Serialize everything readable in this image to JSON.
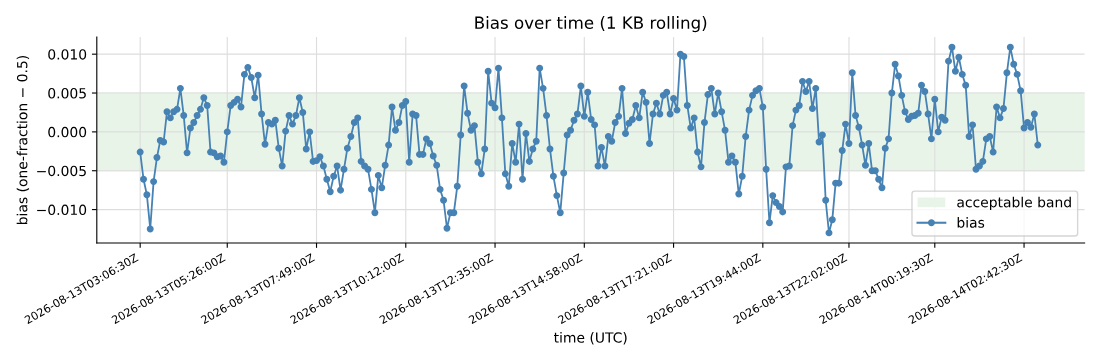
{
  "chart_data": {
    "type": "line",
    "title": "Bias over time (1 KB rolling)",
    "xlabel": "time (UTC)",
    "ylabel": "bias (one-fraction − 0.5)",
    "x": [
      "2026-08-13T03:06:30",
      "2026-08-13T03:11:52",
      "2026-08-13T03:17:14",
      "2026-08-13T03:22:36",
      "2026-08-13T03:27:58",
      "2026-08-13T03:33:20",
      "2026-08-13T03:38:42",
      "2026-08-13T03:44:04",
      "2026-08-13T03:49:26",
      "2026-08-13T03:54:48",
      "2026-08-13T04:00:10",
      "2026-08-13T04:05:32",
      "2026-08-13T04:10:54",
      "2026-08-13T04:16:16",
      "2026-08-13T04:21:38",
      "2026-08-13T04:27:00",
      "2026-08-13T04:32:22",
      "2026-08-13T04:37:44",
      "2026-08-13T04:43:06",
      "2026-08-13T04:48:28",
      "2026-08-13T04:53:50",
      "2026-08-13T04:59:12",
      "2026-08-13T05:04:34",
      "2026-08-13T05:09:56",
      "2026-08-13T05:15:18",
      "2026-08-13T05:20:40",
      "2026-08-13T05:26:00",
      "2026-08-13T05:31:30",
      "2026-08-13T05:37:00",
      "2026-08-13T05:42:30",
      "2026-08-13T05:48:00",
      "2026-08-13T05:53:30",
      "2026-08-13T05:59:00",
      "2026-08-13T06:04:30",
      "2026-08-13T06:10:00",
      "2026-08-13T06:15:30",
      "2026-08-13T06:21:00",
      "2026-08-13T06:26:30",
      "2026-08-13T06:32:00",
      "2026-08-13T06:37:30",
      "2026-08-13T06:43:00",
      "2026-08-13T06:48:30",
      "2026-08-13T06:54:00",
      "2026-08-13T06:59:30",
      "2026-08-13T07:05:00",
      "2026-08-13T07:10:30",
      "2026-08-13T07:16:00",
      "2026-08-13T07:21:30",
      "2026-08-13T07:27:00",
      "2026-08-13T07:32:30",
      "2026-08-13T07:38:00",
      "2026-08-13T07:43:30",
      "2026-08-13T07:49:00",
      "2026-08-13T07:54:30",
      "2026-08-13T08:00:00",
      "2026-08-13T08:05:30",
      "2026-08-13T08:11:00",
      "2026-08-13T08:16:30",
      "2026-08-13T08:22:00",
      "2026-08-13T08:27:30",
      "2026-08-13T08:33:00",
      "2026-08-13T08:38:30",
      "2026-08-13T08:44:00",
      "2026-08-13T08:49:30",
      "2026-08-13T08:55:00",
      "2026-08-13T09:00:30",
      "2026-08-13T09:06:00",
      "2026-08-13T09:11:30",
      "2026-08-13T09:17:00",
      "2026-08-13T09:22:30",
      "2026-08-13T09:28:00",
      "2026-08-13T09:33:30",
      "2026-08-13T09:39:00",
      "2026-08-13T09:44:30",
      "2026-08-13T09:50:00",
      "2026-08-13T09:55:30",
      "2026-08-13T10:01:00",
      "2026-08-13T10:06:30",
      "2026-08-13T10:12:00",
      "2026-08-13T10:17:30",
      "2026-08-13T10:23:00",
      "2026-08-13T10:28:30",
      "2026-08-13T10:34:00",
      "2026-08-13T10:39:30",
      "2026-08-13T10:45:00",
      "2026-08-13T10:50:30",
      "2026-08-13T10:56:00",
      "2026-08-13T11:01:30",
      "2026-08-13T11:07:00",
      "2026-08-13T11:12:30",
      "2026-08-13T11:18:00",
      "2026-08-13T11:23:30",
      "2026-08-13T11:29:00",
      "2026-08-13T11:34:30",
      "2026-08-13T11:40:00",
      "2026-08-13T11:45:30",
      "2026-08-13T11:51:00",
      "2026-08-13T11:56:30",
      "2026-08-13T12:02:00",
      "2026-08-13T12:07:30",
      "2026-08-13T12:13:00",
      "2026-08-13T12:18:30",
      "2026-08-13T12:24:00",
      "2026-08-13T12:29:30",
      "2026-08-13T12:35:00",
      "2026-08-13T12:40:30",
      "2026-08-13T12:46:00",
      "2026-08-13T12:51:30",
      "2026-08-13T12:57:00",
      "2026-08-13T13:02:30",
      "2026-08-13T13:08:00",
      "2026-08-13T13:13:30",
      "2026-08-13T13:19:00",
      "2026-08-13T13:24:30",
      "2026-08-13T13:30:00",
      "2026-08-13T13:35:30",
      "2026-08-13T13:41:00",
      "2026-08-13T13:46:30",
      "2026-08-13T13:52:00",
      "2026-08-13T13:57:30",
      "2026-08-13T14:03:00",
      "2026-08-13T14:08:30",
      "2026-08-13T14:14:00",
      "2026-08-13T14:19:30",
      "2026-08-13T14:25:00",
      "2026-08-13T14:30:30",
      "2026-08-13T14:36:00",
      "2026-08-13T14:41:30",
      "2026-08-13T14:47:00",
      "2026-08-13T14:52:30",
      "2026-08-13T14:58:00",
      "2026-08-13T15:03:30",
      "2026-08-13T15:09:00",
      "2026-08-13T15:14:30",
      "2026-08-13T15:20:00",
      "2026-08-13T15:25:30",
      "2026-08-13T15:31:00",
      "2026-08-13T15:36:30",
      "2026-08-13T15:42:00",
      "2026-08-13T15:47:30",
      "2026-08-13T15:53:00",
      "2026-08-13T15:58:30",
      "2026-08-13T16:04:00",
      "2026-08-13T16:09:30",
      "2026-08-13T16:15:00",
      "2026-08-13T16:20:30",
      "2026-08-13T16:26:00",
      "2026-08-13T16:31:30",
      "2026-08-13T16:37:00",
      "2026-08-13T16:42:30",
      "2026-08-13T16:48:00",
      "2026-08-13T16:53:30",
      "2026-08-13T16:59:00",
      "2026-08-13T17:04:30",
      "2026-08-13T17:10:00",
      "2026-08-13T17:15:30",
      "2026-08-13T17:21:00",
      "2026-08-13T17:26:30",
      "2026-08-13T17:32:00",
      "2026-08-13T17:37:30",
      "2026-08-13T17:43:00",
      "2026-08-13T17:48:30",
      "2026-08-13T17:54:00",
      "2026-08-13T17:59:30",
      "2026-08-13T18:05:00",
      "2026-08-13T18:10:30",
      "2026-08-13T18:16:00",
      "2026-08-13T18:21:30",
      "2026-08-13T18:27:00",
      "2026-08-13T18:32:30",
      "2026-08-13T18:38:00",
      "2026-08-13T18:43:30",
      "2026-08-13T18:49:00",
      "2026-08-13T18:54:30",
      "2026-08-13T19:00:00",
      "2026-08-13T19:05:30",
      "2026-08-13T19:11:00",
      "2026-08-13T19:16:30",
      "2026-08-13T19:22:00",
      "2026-08-13T19:27:30",
      "2026-08-13T19:33:00",
      "2026-08-13T19:38:30",
      "2026-08-13T19:44:00",
      "2026-08-13T19:49:18",
      "2026-08-13T19:54:36",
      "2026-08-13T19:59:54",
      "2026-08-13T20:05:12",
      "2026-08-13T20:10:30",
      "2026-08-13T20:15:48",
      "2026-08-13T20:21:06",
      "2026-08-13T20:26:24",
      "2026-08-13T20:31:42",
      "2026-08-13T20:37:00",
      "2026-08-13T20:42:18",
      "2026-08-13T20:47:36",
      "2026-08-13T20:52:54",
      "2026-08-13T20:58:12",
      "2026-08-13T21:03:30",
      "2026-08-13T21:08:48",
      "2026-08-13T21:14:06",
      "2026-08-13T21:19:24",
      "2026-08-13T21:24:42",
      "2026-08-13T21:30:00",
      "2026-08-13T21:35:18",
      "2026-08-13T21:40:36",
      "2026-08-13T21:45:54",
      "2026-08-13T21:51:12",
      "2026-08-13T21:56:30",
      "2026-08-13T22:02:00",
      "2026-08-13T22:07:17",
      "2026-08-13T22:12:34",
      "2026-08-13T22:17:51",
      "2026-08-13T22:23:08",
      "2026-08-13T22:28:25",
      "2026-08-13T22:33:42",
      "2026-08-13T22:38:59",
      "2026-08-13T22:44:16",
      "2026-08-13T22:49:33",
      "2026-08-13T22:54:50",
      "2026-08-13T23:00:07",
      "2026-08-13T23:05:24",
      "2026-08-13T23:10:41",
      "2026-08-13T23:15:58",
      "2026-08-13T23:21:15",
      "2026-08-13T23:26:32",
      "2026-08-13T23:31:49",
      "2026-08-13T23:37:06",
      "2026-08-13T23:42:23",
      "2026-08-13T23:47:40",
      "2026-08-13T23:52:57",
      "2026-08-13T23:58:14",
      "2026-08-14T00:03:31",
      "2026-08-14T00:08:48",
      "2026-08-14T00:14:05",
      "2026-08-14T00:19:30",
      "2026-08-14T00:25:00",
      "2026-08-14T00:30:30",
      "2026-08-14T00:36:00",
      "2026-08-14T00:41:30",
      "2026-08-14T00:47:00",
      "2026-08-14T00:52:30",
      "2026-08-14T00:58:00",
      "2026-08-14T01:03:30",
      "2026-08-14T01:09:00",
      "2026-08-14T01:14:30",
      "2026-08-14T01:20:00",
      "2026-08-14T01:25:30",
      "2026-08-14T01:31:00",
      "2026-08-14T01:36:30",
      "2026-08-14T01:42:00",
      "2026-08-14T01:47:30",
      "2026-08-14T01:53:00",
      "2026-08-14T01:58:30",
      "2026-08-14T02:04:00",
      "2026-08-14T02:09:30",
      "2026-08-14T02:15:00",
      "2026-08-14T02:20:30",
      "2026-08-14T02:26:00",
      "2026-08-14T02:31:30",
      "2026-08-14T02:37:00",
      "2026-08-14T02:42:30",
      "2026-08-14T02:48:00",
      "2026-08-14T02:53:30",
      "2026-08-14T02:59:00",
      "2026-08-14T03:04:30"
    ],
    "xlim": [
      "2026-08-13T01:57:00",
      "2026-08-14T04:19:30"
    ],
    "xticks": [
      {
        "value": "2026-08-13T03:06:30",
        "label": "2026-08-13T03:06:30Z"
      },
      {
        "value": "2026-08-13T05:26:00",
        "label": "2026-08-13T05:26:00Z"
      },
      {
        "value": "2026-08-13T07:49:00",
        "label": "2026-08-13T07:49:00Z"
      },
      {
        "value": "2026-08-13T10:12:00",
        "label": "2026-08-13T10:12:00Z"
      },
      {
        "value": "2026-08-13T12:35:00",
        "label": "2026-08-13T12:35:00Z"
      },
      {
        "value": "2026-08-13T14:58:00",
        "label": "2026-08-13T14:58:00Z"
      },
      {
        "value": "2026-08-13T17:21:00",
        "label": "2026-08-13T17:21:00Z"
      },
      {
        "value": "2026-08-13T19:44:00",
        "label": "2026-08-13T19:44:00Z"
      },
      {
        "value": "2026-08-13T22:02:00",
        "label": "2026-08-13T22:02:00Z"
      },
      {
        "value": "2026-08-14T00:19:30",
        "label": "2026-08-14T00:19:30Z"
      },
      {
        "value": "2026-08-14T02:42:30",
        "label": "2026-08-14T02:42:30Z"
      }
    ],
    "series": [
      {
        "name": "bias",
        "color": "#4682b4",
        "values": [
          -0.0026,
          -0.0061,
          -0.0081,
          -0.0125,
          -0.0064,
          -0.0033,
          -0.0011,
          -0.0013,
          0.0026,
          0.0018,
          0.0026,
          0.0029,
          0.0056,
          0.0021,
          -0.0027,
          0.0005,
          0.0012,
          0.0021,
          0.0029,
          0.0044,
          0.0034,
          -0.0026,
          -0.0027,
          -0.0032,
          -0.0031,
          -0.0039,
          0.0,
          0.0034,
          0.0038,
          0.0042,
          0.0032,
          0.0074,
          0.0083,
          0.007,
          0.0044,
          0.0073,
          0.0023,
          -0.0016,
          0.0012,
          0.001,
          0.0015,
          -0.0021,
          -0.0044,
          0.0001,
          0.0021,
          0.001,
          0.0021,
          0.0044,
          0.0025,
          -0.0022,
          0.0,
          -0.0038,
          -0.0037,
          -0.0032,
          -0.0044,
          -0.0061,
          -0.0077,
          -0.0057,
          -0.0044,
          -0.0075,
          -0.0048,
          -0.0021,
          -0.0006,
          0.0012,
          0.0018,
          -0.0038,
          -0.0044,
          -0.0048,
          -0.0074,
          -0.0104,
          -0.0056,
          -0.0072,
          -0.0043,
          -0.0017,
          0.0032,
          0.0002,
          0.0012,
          0.0034,
          0.0039,
          -0.0039,
          0.0023,
          0.0021,
          -0.0029,
          -0.0029,
          -0.0009,
          -0.0015,
          -0.0031,
          -0.0043,
          -0.0074,
          -0.0088,
          -0.0124,
          -0.0104,
          -0.0104,
          -0.007,
          -0.0004,
          0.0059,
          0.0024,
          0.0002,
          0.0008,
          -0.0039,
          -0.0054,
          -0.0022,
          0.0078,
          0.0037,
          0.0031,
          0.0082,
          0.0018,
          -0.0054,
          -0.007,
          -0.0015,
          -0.0039,
          0.001,
          -0.0061,
          -0.0002,
          -0.0038,
          -0.0022,
          -0.0012,
          0.0082,
          0.0056,
          0.0021,
          -0.0022,
          -0.0057,
          -0.0082,
          -0.0104,
          -0.0053,
          -0.0004,
          0.0002,
          0.0015,
          0.0023,
          0.0059,
          0.002,
          0.0051,
          0.0016,
          0.0009,
          -0.0044,
          -0.002,
          -0.0044,
          -0.0006,
          -0.0012,
          0.0012,
          0.002,
          0.0056,
          -0.0002,
          0.0011,
          0.0016,
          0.0034,
          0.0018,
          0.0051,
          0.0038,
          -0.0015,
          0.0023,
          0.0037,
          0.0023,
          0.0047,
          0.0051,
          0.0023,
          0.0043,
          0.0028,
          0.01,
          0.0097,
          0.0034,
          0.0005,
          0.0018,
          -0.0026,
          -0.0045,
          0.0012,
          0.0048,
          0.0056,
          0.0023,
          0.005,
          0.0026,
          0.0002,
          -0.0039,
          -0.0031,
          -0.0039,
          -0.008,
          -0.0057,
          -0.0006,
          0.0028,
          0.0047,
          0.0053,
          0.0056,
          0.0032,
          -0.0048,
          -0.0117,
          -0.0082,
          -0.0091,
          -0.0096,
          -0.0103,
          -0.0045,
          -0.0044,
          0.0008,
          0.0028,
          0.0034,
          0.0065,
          0.0052,
          0.0065,
          0.003,
          0.0056,
          -0.0013,
          -0.0004,
          -0.0088,
          -0.013,
          -0.0113,
          -0.0066,
          -0.0066,
          -0.0024,
          0.001,
          -0.0015,
          0.0076,
          0.0021,
          0.0006,
          -0.0017,
          -0.0043,
          -0.0015,
          -0.005,
          -0.005,
          -0.0061,
          -0.0072,
          -0.0021,
          -0.0009,
          0.005,
          0.0087,
          0.0072,
          0.0047,
          0.0026,
          0.0016,
          0.002,
          0.0021,
          0.0024,
          0.006,
          0.0052,
          0.0023,
          -0.0009,
          0.0042,
          0.0,
          0.0019,
          0.0015,
          0.0091,
          0.0109,
          0.0078,
          0.0096,
          0.0074,
          0.006,
          -0.0006,
          0.0009,
          -0.0048,
          -0.0044,
          -0.0038,
          -0.0009,
          -0.0006,
          -0.0026,
          0.0032,
          0.0018,
          0.003,
          0.0076,
          0.0109,
          0.0087,
          0.0074,
          0.0053,
          0.0005,
          0.0012,
          0.0006,
          0.0023,
          -0.0017
        ]
      }
    ],
    "ylim": [
      -0.0143,
      0.0122
    ],
    "yticks": [
      {
        "value": -0.01,
        "label": "−0.010"
      },
      {
        "value": -0.005,
        "label": "−0.005"
      },
      {
        "value": 0,
        "label": "0.000"
      },
      {
        "value": 0.005,
        "label": "0.005"
      },
      {
        "value": 0.01,
        "label": "0.010"
      }
    ],
    "bands": [
      {
        "axis": "y",
        "from": -0.005,
        "to": 0.005,
        "label": "acceptable band",
        "color": "#e9f4e9"
      }
    ],
    "grid": true,
    "legend": "lower right",
    "marker": "circle",
    "line_style": "solid"
  }
}
